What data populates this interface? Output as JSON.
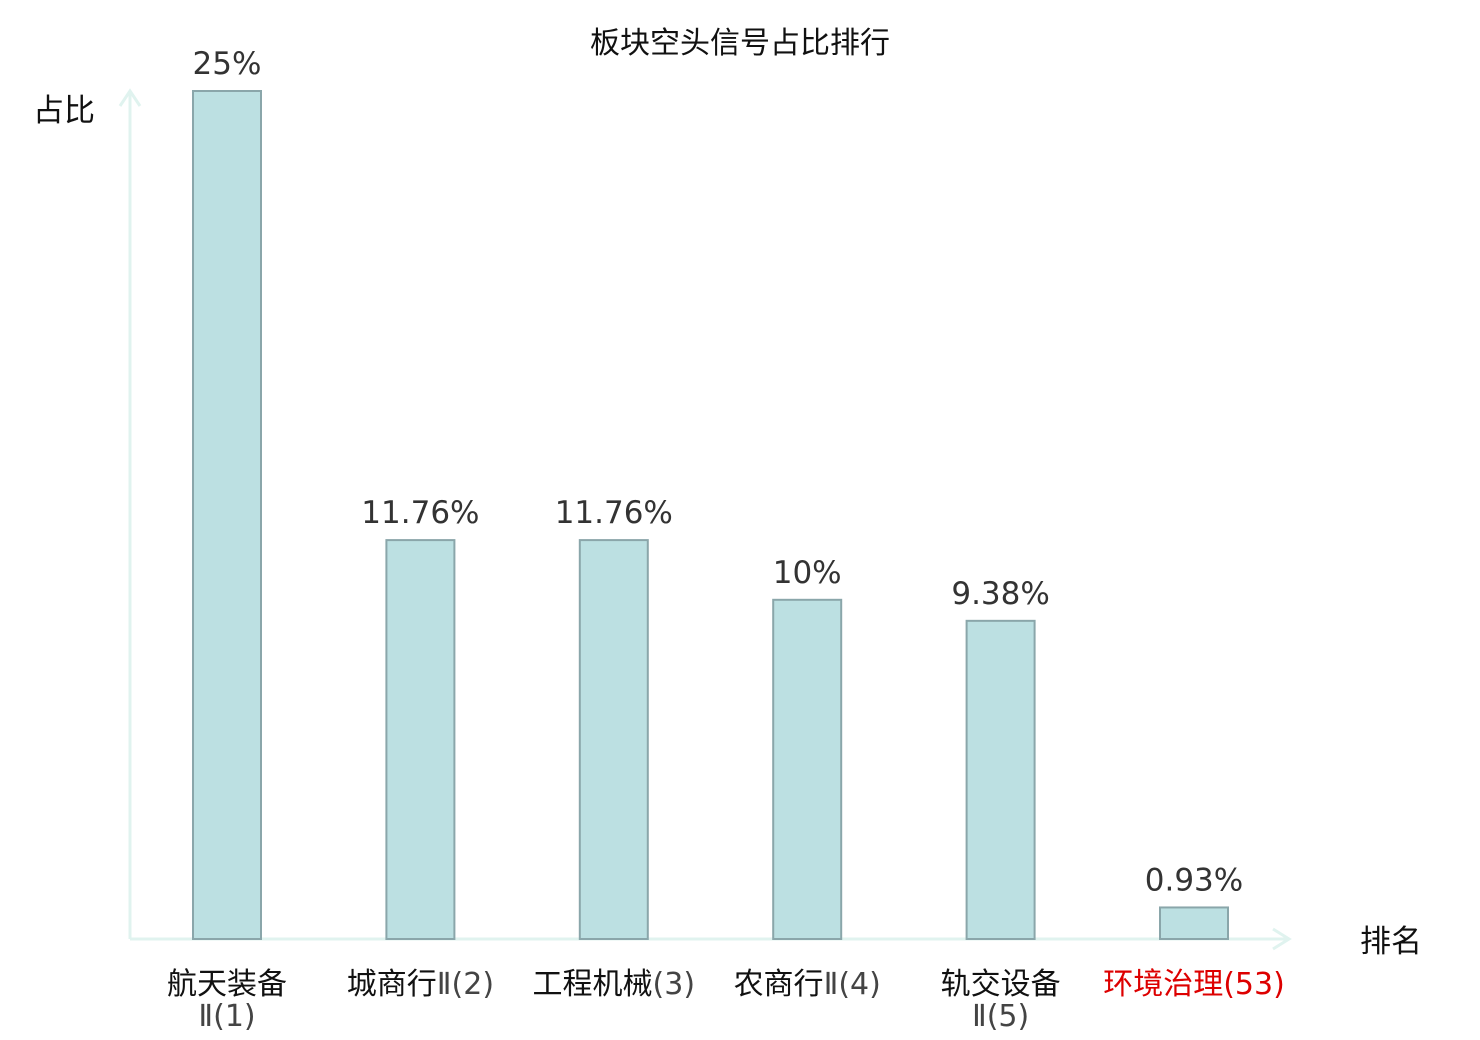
{
  "chart_data": {
    "type": "bar",
    "title": "板块空头信号占比排行",
    "ylabel": "占比",
    "xlabel": "排名",
    "ylim": [
      0,
      25
    ],
    "grid": false,
    "categories": [
      {
        "name": "航天装备Ⅱ",
        "rank": "(1)",
        "lines": [
          "航天装备",
          "Ⅱ(1)"
        ]
      },
      {
        "name": "城商行Ⅱ",
        "rank": "(2)",
        "lines": [
          "城商行Ⅱ(2)"
        ]
      },
      {
        "name": "工程机械",
        "rank": "(3)",
        "lines": [
          "工程机械(3)"
        ]
      },
      {
        "name": "农商行Ⅱ",
        "rank": "(4)",
        "lines": [
          "农商行Ⅱ(4)"
        ]
      },
      {
        "name": "轨交设备Ⅱ",
        "rank": "(5)",
        "lines": [
          "轨交设备",
          "Ⅱ(5)"
        ]
      },
      {
        "name": "环境治理",
        "rank": "(53)",
        "lines": [
          "环境治理(53)"
        ],
        "highlight": true
      }
    ],
    "values": [
      25,
      11.76,
      11.76,
      10,
      9.38,
      0.93
    ],
    "value_labels": [
      "25%",
      "11.76%",
      "11.76%",
      "10%",
      "9.38%",
      "0.93%"
    ],
    "colors": {
      "bar_fill": "#bce0e2",
      "bar_stroke": "#8aa6aa",
      "axis": "#e0f3ef",
      "highlight_text": "#dd0000"
    }
  }
}
